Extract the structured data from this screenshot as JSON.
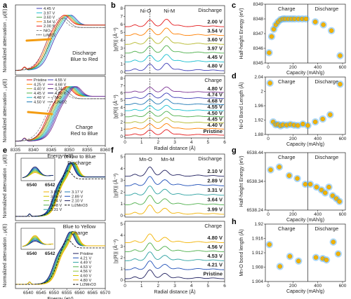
{
  "panel_labels": {
    "a": "a",
    "b": "b",
    "c": "c",
    "d": "d",
    "e": "e",
    "f": "f",
    "g": "g",
    "h": "h"
  },
  "colors": {
    "series": [
      "#e41a1c",
      "#ff7f00",
      "#b5b82a",
      "#4daf4a",
      "#17becf",
      "#1f78b4",
      "#3f3fb8",
      "#7b3294",
      "#000000"
    ],
    "marker_face": "#f2b200",
    "marker_glow": "#4aa8f0",
    "arrow": "#f39c12"
  },
  "chart_data": [
    {
      "id": "a_top",
      "type": "line",
      "ylabel": "Normalized attenuation , μ(E)",
      "xlim": [
        8335,
        8360
      ],
      "note_lines": [
        "Discharge",
        "Blue to Red"
      ],
      "legend": [
        "4.45 V",
        "3.97 V",
        "3.60 V",
        "3.54 V",
        "2.00 V",
        "NiO",
        "LiNiO2"
      ],
      "series": [
        {
          "name": "4.45 V",
          "edge": 8346.0
        },
        {
          "name": "3.97 V",
          "edge": 8345.4
        },
        {
          "name": "3.60 V",
          "edge": 8344.8
        },
        {
          "name": "3.54 V",
          "edge": 8344.3
        },
        {
          "name": "2.00 V",
          "edge": 8343.7
        }
      ]
    },
    {
      "id": "a_bottom",
      "type": "line",
      "xlabel": "Energy (eV)",
      "ylabel": "Normalized attenuation , μ(E)",
      "xlim": [
        8335,
        8360
      ],
      "xticks": [
        8335,
        8340,
        8345,
        8350,
        8355,
        8360
      ],
      "note_lines": [
        "Charge",
        "Red to Blue"
      ],
      "legend": [
        "Pristine",
        "4.25 V",
        "4.40 V",
        "4.45 V",
        "4.48 V",
        "4.50 V",
        "4.55 V",
        "4.68 V",
        "4.74 V",
        "4.80 V",
        "NiO",
        "LiNiO2"
      ],
      "series": [
        {
          "name": "Pristine",
          "edge": 8343.8
        },
        {
          "name": "4.25 V",
          "edge": 8344.6
        },
        {
          "name": "4.45 V",
          "edge": 8345.2
        },
        {
          "name": "4.55 V",
          "edge": 8345.8
        },
        {
          "name": "4.80 V",
          "edge": 8346.3
        }
      ]
    },
    {
      "id": "b_top",
      "type": "line",
      "xlim": [
        0,
        6
      ],
      "ylabel": "|χ(R)| (Å⁻³)",
      "yticks": [
        0,
        1,
        2,
        3,
        4,
        5,
        6,
        7,
        8
      ],
      "peak_labels": [
        "Ni-O",
        "Ni-M"
      ],
      "title": "Discharge",
      "series": [
        {
          "name": "2.00 V",
          "color": "#e41a1c"
        },
        {
          "name": "3.54 V",
          "color": "#ff7f00"
        },
        {
          "name": "3.60 V",
          "color": "#b5b82a"
        },
        {
          "name": "3.97 V",
          "color": "#4daf4a"
        },
        {
          "name": "4.45 V",
          "color": "#17becf"
        },
        {
          "name": "4.80 V",
          "color": "#3f3fb8"
        }
      ]
    },
    {
      "id": "b_bottom",
      "type": "line",
      "xlim": [
        0,
        6
      ],
      "xlabel": "Radial distance (Å)",
      "ylabel": "|χ(R)| (Å⁻³)",
      "yticks": [
        0,
        1,
        2,
        3,
        4,
        5,
        6,
        7,
        8
      ],
      "title": "Charge",
      "series": [
        {
          "name": "4.80 V",
          "color": "#7b3294"
        },
        {
          "name": "4.74 V",
          "color": "#3f3fb8"
        },
        {
          "name": "4.68 V",
          "color": "#1f78b4"
        },
        {
          "name": "4.55 V",
          "color": "#17becf"
        },
        {
          "name": "4.50 V",
          "color": "#4daf4a"
        },
        {
          "name": "4.45 V",
          "color": "#b5b82a"
        },
        {
          "name": "4.40 V",
          "color": "#ff7f00"
        },
        {
          "name": "Pristine",
          "color": "#e41a1c"
        }
      ]
    },
    {
      "id": "c",
      "type": "scatter",
      "xlabel": "Capacity (mAh/g)",
      "ylabel": "Half-height Energy (eV)",
      "xlim": [
        0,
        600
      ],
      "ylim": [
        8345,
        8349
      ],
      "xticks": [
        0,
        200,
        400,
        600
      ],
      "yticks": [
        8345,
        8346,
        8347,
        8348,
        8349
      ],
      "divider_x": 320,
      "regions": [
        "Charge",
        "Discharge"
      ],
      "x": [
        8,
        28,
        45,
        62,
        80,
        100,
        120,
        140,
        165,
        190,
        215,
        245,
        275,
        305,
        380,
        445,
        510,
        580
      ],
      "y": [
        8345.7,
        8346.8,
        8347.3,
        8347.6,
        8347.8,
        8347.95,
        8348.0,
        8348.0,
        8348.0,
        8348.0,
        8348.0,
        8348.0,
        8348.0,
        8348.0,
        8347.8,
        8347.6,
        8347.2,
        8345.5
      ]
    },
    {
      "id": "d",
      "type": "scatter",
      "xlabel": "Capacity (mAh/g)",
      "ylabel": "Ni-O Bond Length (Å)",
      "xlim": [
        0,
        600
      ],
      "ylim": [
        1.88,
        2.04
      ],
      "xticks": [
        0,
        200,
        400,
        600
      ],
      "yticks": [
        1.88,
        1.92,
        1.96,
        2.0,
        2.04
      ],
      "divider_x": 320,
      "regions": [
        "Charge",
        "Discharge"
      ],
      "x": [
        15,
        40,
        60,
        80,
        100,
        120,
        150,
        180,
        210,
        240,
        280,
        320,
        380,
        440,
        500,
        580
      ],
      "y": [
        2.023,
        1.915,
        1.907,
        1.908,
        1.904,
        1.907,
        1.906,
        1.908,
        1.906,
        1.905,
        1.909,
        1.905,
        1.915,
        1.923,
        1.935,
        2.02
      ]
    },
    {
      "id": "e_top",
      "type": "line",
      "ylabel": "Normalized attenuation , μ(E)",
      "xlim": [
        6535,
        6570
      ],
      "note_lines": [
        "Yellow to Blue",
        "Discharge"
      ],
      "inset_ticks": [
        "6540",
        "6542"
      ],
      "legend": [
        "3.99 V",
        "3.85 V",
        "3.64 V",
        "3.48 V",
        "3.31 V",
        "3.17 V",
        "2.89 V",
        "2.10 V",
        "Li2MnO3"
      ]
    },
    {
      "id": "e_bottom",
      "type": "line",
      "xlabel": "Energy (eV)",
      "ylabel": "Normalized attenuation , μ(E)",
      "xlim": [
        6535,
        6570
      ],
      "xticks": [
        6540,
        6545,
        6550,
        6555,
        6560,
        6565,
        6570
      ],
      "note_lines": [
        "Blue to Yellow",
        "Charge"
      ],
      "inset_ticks": [
        "6540",
        "6542"
      ],
      "legend": [
        "Pristine",
        "4.21 V",
        "4.49 V",
        "4.53 V",
        "4.56 V",
        "4.60 V",
        "4.80 V",
        "Li2MnO3"
      ]
    },
    {
      "id": "f_top",
      "type": "line",
      "xlim": [
        0,
        6
      ],
      "ylabel": "|χ(R)| (Å⁻³)",
      "yticks": [
        0,
        1,
        2,
        3,
        4,
        5
      ],
      "peak_labels": [
        "Mn-O",
        "Mn-M"
      ],
      "title": "Discharge",
      "series": [
        {
          "name": "2.10 V",
          "color": "#1f1f5f"
        },
        {
          "name": "2.89 V",
          "color": "#1f4fb8"
        },
        {
          "name": "3.31 V",
          "color": "#2aa0a0"
        },
        {
          "name": "3.64 V",
          "color": "#4daf4a"
        },
        {
          "name": "3.99 V",
          "color": "#f2b200"
        }
      ]
    },
    {
      "id": "f_bottom",
      "type": "line",
      "xlim": [
        0,
        6
      ],
      "xlabel": "Radial distance (Å)",
      "ylabel": "|χ(R)| (Å⁻³)",
      "yticks": [
        0,
        1,
        2,
        3,
        4,
        5
      ],
      "title": "Charge",
      "series": [
        {
          "name": "4.80 V",
          "color": "#f2b200"
        },
        {
          "name": "4.56 V",
          "color": "#4daf4a"
        },
        {
          "name": "4.53 V",
          "color": "#2aa0a0"
        },
        {
          "name": "4.21 V",
          "color": "#1f4fb8"
        },
        {
          "name": "Pristine",
          "color": "#1f1f5f"
        }
      ]
    },
    {
      "id": "g",
      "type": "scatter",
      "xlabel": "Capacity (mAh/g)",
      "ylabel": "Half-height Energy (eV)",
      "xlim": [
        0,
        600
      ],
      "ylim": [
        6538.24,
        6538.44
      ],
      "xticks": [
        0,
        200,
        400,
        600
      ],
      "yticks": [
        6538.24,
        6538.34,
        6538.44
      ],
      "divider_x": 320,
      "regions": [
        "Charge",
        "Discharge"
      ],
      "x": [
        20,
        90,
        170,
        235,
        300,
        340,
        390,
        430,
        460,
        490,
        520,
        550,
        575
      ],
      "y": [
        6538.38,
        6538.39,
        6538.36,
        6538.35,
        6538.33,
        6538.33,
        6538.32,
        6538.31,
        6538.3,
        6538.32,
        6538.29,
        6538.28,
        6538.27
      ]
    },
    {
      "id": "h",
      "type": "scatter",
      "xlabel": "Capacity (mAh/g)",
      "ylabel": "Mn-O bond length (Å)",
      "xlim": [
        0,
        600
      ],
      "ylim": [
        1.904,
        1.92
      ],
      "xticks": [
        0,
        200,
        400,
        600
      ],
      "yticks": [
        1.904,
        1.908,
        1.912,
        1.916,
        1.92
      ],
      "divider_x": 320,
      "regions": [
        "Charge",
        "Discharge"
      ],
      "x": [
        10,
        95,
        175,
        245,
        385,
        440,
        470,
        525,
        565
      ],
      "y": [
        1.9143,
        1.9082,
        1.911,
        1.9097,
        1.9107,
        1.9104,
        1.91,
        1.915,
        1.9117
      ]
    }
  ]
}
